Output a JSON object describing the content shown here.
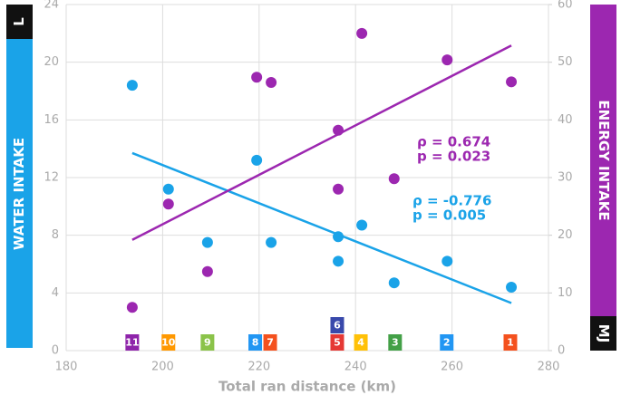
{
  "chart_data": {
    "type": "scatter",
    "xlabel": "Total ran distance (km)",
    "xlim": [
      180,
      280
    ],
    "xticks": [
      180,
      200,
      220,
      240,
      260,
      280
    ],
    "ylim": [
      0,
      24
    ],
    "yticks": [
      0,
      4,
      8,
      12,
      16,
      20,
      24
    ],
    "y2lim": [
      0,
      60
    ],
    "y2ticks": [
      0,
      10,
      20,
      30,
      40,
      50,
      60
    ],
    "y_unit": "L",
    "y2_unit": "MJ",
    "grid": true,
    "x": [
      193.7,
      201.2,
      209.3,
      219.5,
      222.5,
      236.4,
      236.4,
      241.3,
      248,
      259,
      272.3
    ],
    "series": [
      {
        "name": "WATER INTAKE",
        "color": "#1aa3e8",
        "axis": "y",
        "values": [
          18.4,
          11.2,
          7.5,
          13.2,
          7.5,
          7.9,
          6.2,
          8.7,
          4.7,
          6.2,
          4.4
        ],
        "trend": {
          "x": [
            193.7,
            272.3
          ],
          "y": [
            13.7,
            3.3
          ]
        }
      },
      {
        "name": "ENERGY INTAKE",
        "color": "#9c27b0",
        "axis": "y2",
        "values": [
          7.5,
          25.4,
          13.7,
          47.4,
          46.5,
          28,
          38.2,
          55,
          29.8,
          50.4,
          46.6
        ],
        "trend": {
          "x": [
            193.7,
            272.3
          ],
          "y": [
            19.2,
            52.9
          ]
        }
      }
    ],
    "annotations": [
      {
        "rho": "ρ = 0.674",
        "p": "p = 0.023",
        "color": "#9c27b0"
      },
      {
        "rho": "ρ = -0.776",
        "p": "p = 0.005",
        "color": "#1aa3e8"
      }
    ],
    "badges": [
      {
        "label": "11",
        "x": 193.7,
        "color": "#8e24aa"
      },
      {
        "label": "10",
        "x": 201.2,
        "color": "#ff9800"
      },
      {
        "label": "9",
        "x": 209.3,
        "color": "#8bc34a"
      },
      {
        "label": "8",
        "x": 219.2,
        "color": "#2196f3"
      },
      {
        "label": "7",
        "x": 222.3,
        "color": "#f4511e"
      },
      {
        "label": "5",
        "x": 236.2,
        "color": "#e53935"
      },
      {
        "label": "6",
        "x": 236.2,
        "color": "#3949ab"
      },
      {
        "label": "4",
        "x": 241.1,
        "color": "#ffc107"
      },
      {
        "label": "3",
        "x": 248.2,
        "color": "#43a047"
      },
      {
        "label": "2",
        "x": 258.9,
        "color": "#2196f3"
      },
      {
        "label": "1",
        "x": 272.1,
        "color": "#f4511e"
      }
    ]
  }
}
